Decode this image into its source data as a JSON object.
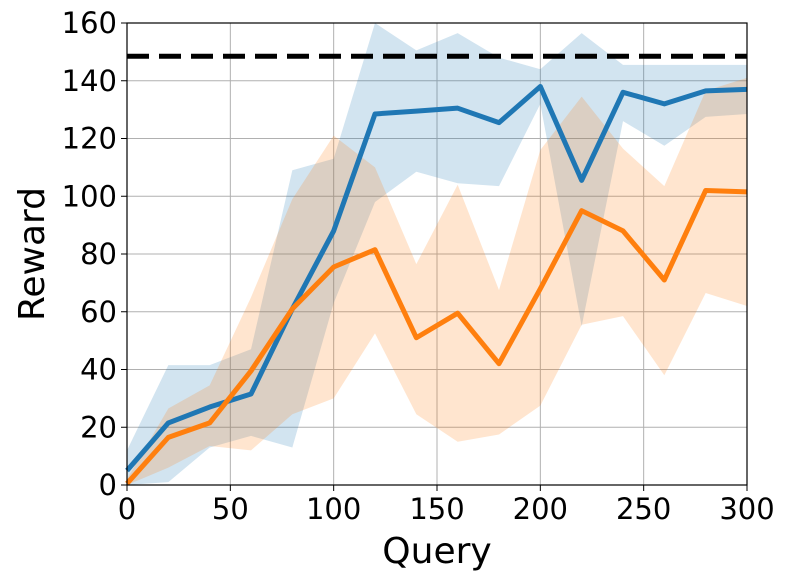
{
  "chart_data": {
    "type": "line",
    "title": "",
    "xlabel": "Query",
    "ylabel": "Reward",
    "xlim": [
      0,
      300
    ],
    "ylim": [
      0,
      160
    ],
    "xticks": [
      0,
      50,
      100,
      150,
      200,
      250,
      300
    ],
    "yticks": [
      0,
      20,
      40,
      60,
      80,
      100,
      120,
      140,
      160
    ],
    "grid": true,
    "x": [
      0,
      20,
      40,
      60,
      80,
      100,
      120,
      140,
      160,
      180,
      200,
      220,
      240,
      260,
      280,
      300
    ],
    "reference_line": {
      "value": 148.5,
      "color": "#000000",
      "style": "dashed"
    },
    "series": [
      {
        "name": "blue",
        "color": "#1f77b4",
        "values": [
          5,
          21.5,
          27,
          31.5,
          61,
          88,
          128.5,
          129.5,
          130.5,
          125.5,
          138,
          105.5,
          136,
          132,
          136.5,
          137
        ],
        "upper": [
          12,
          41.5,
          41.5,
          47,
          109,
          113,
          160,
          150.5,
          156.5,
          148,
          144,
          156.5,
          145.5,
          145.5,
          145.5,
          145.5
        ],
        "lower": [
          0,
          1,
          13,
          17,
          13,
          63,
          98,
          108.5,
          104.5,
          103.5,
          132,
          55,
          126,
          117.5,
          127.5,
          128.5
        ]
      },
      {
        "name": "orange",
        "color": "#ff7f0e",
        "values": [
          0.5,
          16.5,
          21.5,
          39.5,
          61,
          75.5,
          81.5,
          51,
          59.5,
          42,
          68,
          95,
          88,
          71,
          102,
          101.5
        ],
        "upper": [
          2,
          26.5,
          34.5,
          65,
          99,
          121,
          110,
          76.5,
          104,
          67.5,
          116,
          134.5,
          116.5,
          103.5,
          136.5,
          141
        ],
        "lower": [
          0,
          6,
          13.5,
          12,
          24.5,
          30,
          52.5,
          24.5,
          15,
          17.5,
          27.5,
          55.5,
          58.5,
          38,
          66.5,
          62
        ]
      }
    ]
  }
}
